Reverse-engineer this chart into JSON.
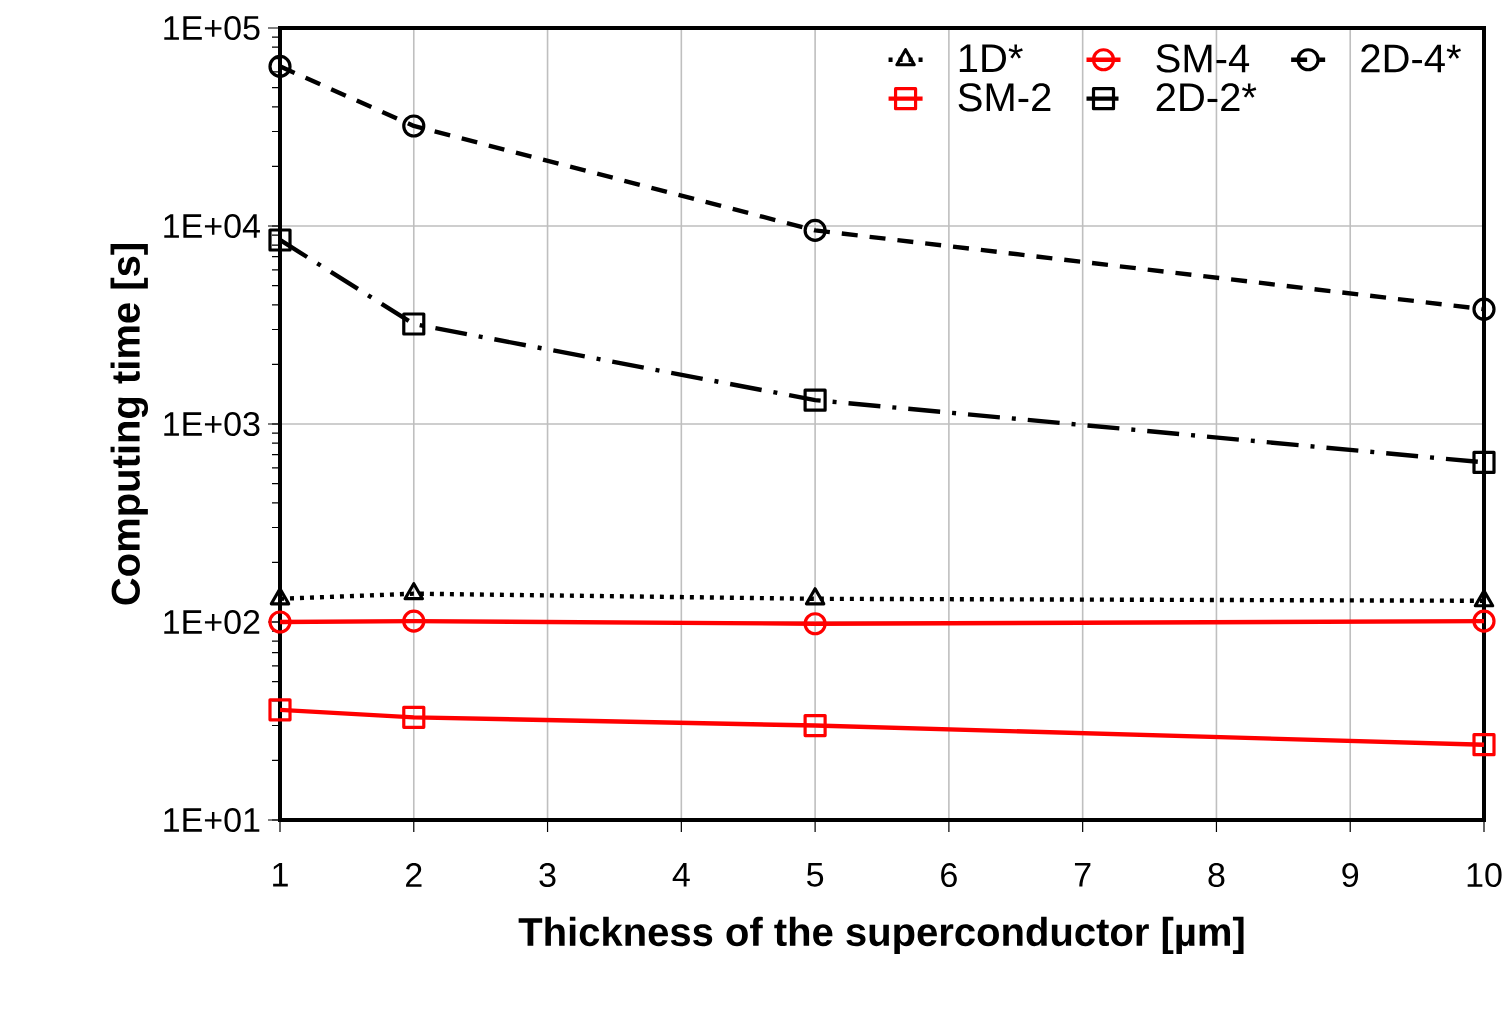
{
  "chart_data": {
    "type": "line",
    "xlabel": "Thickness of the superconductor [µm]",
    "ylabel": "Computing time [s]",
    "x": [
      1,
      2,
      5,
      10
    ],
    "xlim": [
      1,
      10
    ],
    "xticks": [
      1,
      2,
      3,
      4,
      5,
      6,
      7,
      8,
      9,
      10
    ],
    "ylim": [
      10,
      100000
    ],
    "yticks": [
      {
        "value": 10,
        "label": "1E+01"
      },
      {
        "value": 100,
        "label": "1E+02"
      },
      {
        "value": 1000,
        "label": "1E+03"
      },
      {
        "value": 10000,
        "label": "1E+04"
      },
      {
        "value": 100000,
        "label": "1E+05"
      }
    ],
    "log": "y",
    "grid": true,
    "legend": "top right",
    "series": [
      {
        "name": "1D*",
        "color": "#000000",
        "values": [
          131,
          139,
          131,
          128
        ],
        "marker": "triangle",
        "line_style": "dotted"
      },
      {
        "name": "SM-4",
        "color": "#ff0000",
        "values": [
          100,
          101,
          98,
          101
        ],
        "marker": "circle",
        "line_style": "solid"
      },
      {
        "name": "2D-4*",
        "color": "#000000",
        "values": [
          64000,
          32000,
          9500,
          3800
        ],
        "marker": "circle",
        "line_style": "dashed"
      },
      {
        "name": "SM-2",
        "color": "#ff0000",
        "values": [
          36,
          33,
          30,
          24
        ],
        "marker": "square",
        "line_style": "solid"
      },
      {
        "name": "2D-2*",
        "color": "#000000",
        "values": [
          8500,
          3200,
          1320,
          640
        ],
        "marker": "square",
        "line_style": "dashdot"
      }
    ]
  }
}
